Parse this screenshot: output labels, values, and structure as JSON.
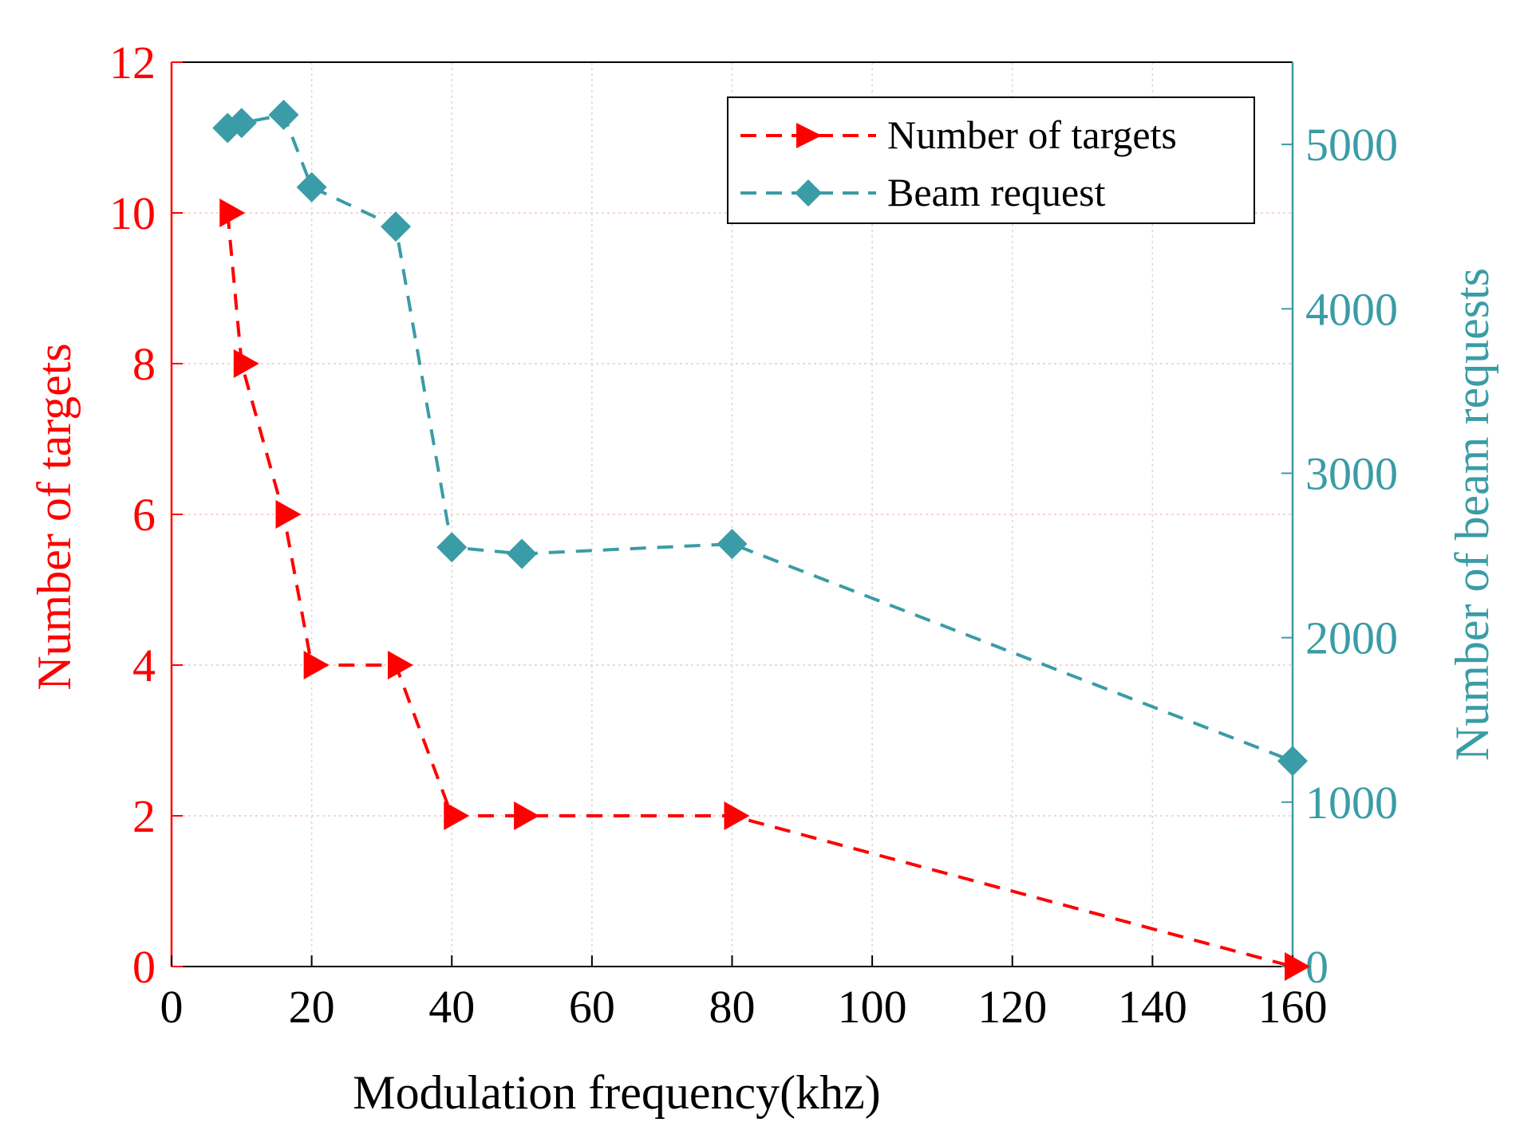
{
  "chart_data": {
    "type": "line",
    "x_axis": {
      "label": "Modulation frequency(khz)",
      "range": [
        0,
        160
      ],
      "ticks": [
        0,
        20,
        40,
        60,
        80,
        100,
        120,
        140,
        160
      ]
    },
    "y_axis_left": {
      "label": "Number of targets",
      "range": [
        0,
        12
      ],
      "ticks": [
        0,
        2,
        4,
        6,
        8,
        10,
        12
      ],
      "color": "#ff0000"
    },
    "y_axis_right": {
      "label": "Number of beam requests",
      "range": [
        0,
        5500
      ],
      "ticks": [
        0,
        1000,
        2000,
        3000,
        4000,
        5000
      ],
      "color": "#3a9ca6"
    },
    "grid": true,
    "legend_position": "top-right",
    "series": [
      {
        "name": "Number of targets",
        "axis": "left",
        "color": "#ff0000",
        "marker": "triangle-right",
        "line_style": "dashed",
        "x": [
          8,
          10,
          16,
          20,
          32,
          40,
          50,
          80,
          160
        ],
        "y": [
          10,
          8,
          6,
          4,
          4,
          2,
          2,
          2,
          0
        ]
      },
      {
        "name": "Beam request",
        "axis": "right",
        "color": "#3a9ca6",
        "marker": "diamond",
        "line_style": "dashed",
        "x": [
          8,
          10,
          16,
          20,
          32,
          40,
          50,
          80,
          160
        ],
        "y": [
          5100,
          5130,
          5180,
          4740,
          4500,
          2550,
          2510,
          2570,
          1250
        ]
      }
    ]
  }
}
